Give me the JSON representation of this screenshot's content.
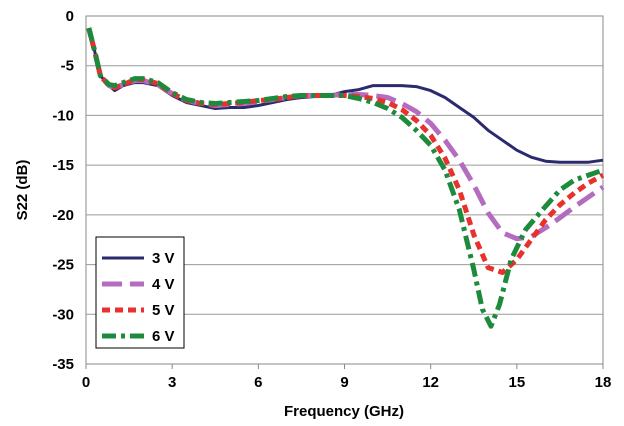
{
  "chart_data": {
    "type": "line",
    "xlabel": "Frequency (GHz)",
    "ylabel": "S22 (dB)",
    "xlim": [
      0,
      18
    ],
    "ylim": [
      -35,
      0
    ],
    "xticks": [
      0,
      3,
      6,
      9,
      12,
      15,
      18
    ],
    "yticks": [
      0,
      -5,
      -10,
      -15,
      -20,
      -25,
      -30,
      -35
    ],
    "grid": "horizontal",
    "legend_position": "bottom-left",
    "series": [
      {
        "name": "3 V",
        "color": "#2b2a6e",
        "dash": "solid",
        "points": [
          [
            0.1,
            -1.5
          ],
          [
            0.3,
            -3.5
          ],
          [
            0.5,
            -6
          ],
          [
            0.8,
            -7
          ],
          [
            1,
            -7.5
          ],
          [
            1.3,
            -7
          ],
          [
            1.7,
            -6.7
          ],
          [
            2,
            -6.7
          ],
          [
            2.5,
            -7
          ],
          [
            3,
            -8
          ],
          [
            3.5,
            -8.7
          ],
          [
            4,
            -9
          ],
          [
            4.5,
            -9.3
          ],
          [
            5,
            -9.2
          ],
          [
            5.5,
            -9.2
          ],
          [
            6,
            -9
          ],
          [
            6.5,
            -8.7
          ],
          [
            7,
            -8.4
          ],
          [
            7.5,
            -8.2
          ],
          [
            8,
            -8.1
          ],
          [
            8.5,
            -8
          ],
          [
            9,
            -7.6
          ],
          [
            9.5,
            -7.4
          ],
          [
            10,
            -7
          ],
          [
            11,
            -7
          ],
          [
            11.5,
            -7.1
          ],
          [
            12,
            -7.5
          ],
          [
            12.5,
            -8.2
          ],
          [
            13,
            -9.2
          ],
          [
            13.5,
            -10.2
          ],
          [
            14,
            -11.5
          ],
          [
            14.5,
            -12.5
          ],
          [
            15,
            -13.5
          ],
          [
            15.5,
            -14.2
          ],
          [
            16,
            -14.6
          ],
          [
            16.5,
            -14.7
          ],
          [
            17,
            -14.7
          ],
          [
            17.5,
            -14.7
          ],
          [
            18,
            -14.5
          ]
        ]
      },
      {
        "name": "4 V",
        "color": "#b56bc0",
        "dash": "long",
        "points": [
          [
            0.1,
            -1.3
          ],
          [
            0.3,
            -3.5
          ],
          [
            0.5,
            -6
          ],
          [
            0.8,
            -7
          ],
          [
            1,
            -7.2
          ],
          [
            1.3,
            -6.9
          ],
          [
            1.7,
            -6.5
          ],
          [
            2,
            -6.5
          ],
          [
            2.5,
            -6.9
          ],
          [
            3,
            -7.8
          ],
          [
            3.5,
            -8.5
          ],
          [
            4,
            -8.8
          ],
          [
            4.5,
            -9
          ],
          [
            5,
            -8.9
          ],
          [
            5.5,
            -8.8
          ],
          [
            6,
            -8.6
          ],
          [
            6.5,
            -8.4
          ],
          [
            7,
            -8.2
          ],
          [
            7.5,
            -8
          ],
          [
            8,
            -8
          ],
          [
            8.5,
            -8
          ],
          [
            9,
            -7.9
          ],
          [
            9.5,
            -7.9
          ],
          [
            10,
            -8
          ],
          [
            10.5,
            -8.2
          ],
          [
            11,
            -8.8
          ],
          [
            11.5,
            -9.6
          ],
          [
            12,
            -10.8
          ],
          [
            12.5,
            -12.5
          ],
          [
            13,
            -14.5
          ],
          [
            13.5,
            -17
          ],
          [
            14,
            -19.8
          ],
          [
            14.5,
            -21.8
          ],
          [
            15,
            -22.4
          ],
          [
            15.5,
            -22.2
          ],
          [
            16,
            -21.3
          ],
          [
            16.5,
            -20.3
          ],
          [
            17,
            -19.2
          ],
          [
            17.5,
            -18.2
          ],
          [
            18,
            -17.2
          ]
        ]
      },
      {
        "name": "5 V",
        "color": "#e8302c",
        "dash": "short",
        "points": [
          [
            0.1,
            -1.3
          ],
          [
            0.3,
            -3.5
          ],
          [
            0.5,
            -6
          ],
          [
            0.8,
            -7
          ],
          [
            1,
            -7.2
          ],
          [
            1.3,
            -6.9
          ],
          [
            1.7,
            -6.4
          ],
          [
            2,
            -6.4
          ],
          [
            2.5,
            -6.8
          ],
          [
            3,
            -7.8
          ],
          [
            3.5,
            -8.5
          ],
          [
            4,
            -8.8
          ],
          [
            4.5,
            -8.9
          ],
          [
            5,
            -8.8
          ],
          [
            5.5,
            -8.7
          ],
          [
            6,
            -8.5
          ],
          [
            6.5,
            -8.4
          ],
          [
            7,
            -8.2
          ],
          [
            7.5,
            -8
          ],
          [
            8,
            -8
          ],
          [
            8.5,
            -8
          ],
          [
            9,
            -8
          ],
          [
            9.5,
            -8.1
          ],
          [
            10,
            -8.3
          ],
          [
            10.5,
            -8.7
          ],
          [
            11,
            -9.4
          ],
          [
            11.5,
            -10.5
          ],
          [
            12,
            -12
          ],
          [
            12.5,
            -14.3
          ],
          [
            13,
            -17.5
          ],
          [
            13.5,
            -22
          ],
          [
            14,
            -25.3
          ],
          [
            14.5,
            -25.8
          ],
          [
            15,
            -24.5
          ],
          [
            15.5,
            -22.5
          ],
          [
            16,
            -20.5
          ],
          [
            16.5,
            -19
          ],
          [
            17,
            -17.8
          ],
          [
            17.5,
            -16.8
          ],
          [
            18,
            -16
          ]
        ]
      },
      {
        "name": "6 V",
        "color": "#1e8a3c",
        "dash": "dashdot",
        "points": [
          [
            0.1,
            -1.2
          ],
          [
            0.3,
            -3.5
          ],
          [
            0.5,
            -6
          ],
          [
            0.8,
            -6.9
          ],
          [
            1,
            -7
          ],
          [
            1.3,
            -6.7
          ],
          [
            1.7,
            -6.3
          ],
          [
            2,
            -6.3
          ],
          [
            2.5,
            -6.7
          ],
          [
            3,
            -7.7
          ],
          [
            3.5,
            -8.4
          ],
          [
            4,
            -8.7
          ],
          [
            4.5,
            -8.8
          ],
          [
            5,
            -8.7
          ],
          [
            5.5,
            -8.6
          ],
          [
            6,
            -8.5
          ],
          [
            6.5,
            -8.3
          ],
          [
            7,
            -8.1
          ],
          [
            7.5,
            -8
          ],
          [
            8,
            -8
          ],
          [
            8.5,
            -8
          ],
          [
            9,
            -8
          ],
          [
            9.5,
            -8.3
          ],
          [
            10,
            -8.7
          ],
          [
            10.5,
            -9.3
          ],
          [
            11,
            -10.2
          ],
          [
            11.5,
            -11.5
          ],
          [
            12,
            -13
          ],
          [
            12.5,
            -15.5
          ],
          [
            13,
            -19.5
          ],
          [
            13.5,
            -25.5
          ],
          [
            13.8,
            -29.5
          ],
          [
            14.1,
            -31.2
          ],
          [
            14.4,
            -29
          ],
          [
            14.8,
            -24.5
          ],
          [
            15.3,
            -21.5
          ],
          [
            15.8,
            -19.8
          ],
          [
            16.5,
            -17.5
          ],
          [
            17,
            -16.5
          ],
          [
            17.5,
            -16
          ],
          [
            18,
            -15.5
          ]
        ]
      }
    ]
  }
}
